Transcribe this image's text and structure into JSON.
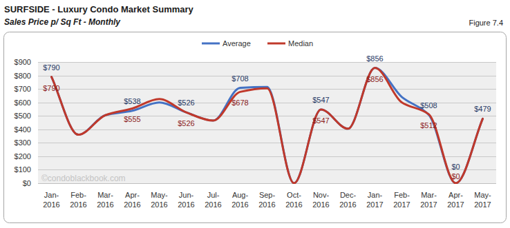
{
  "chart_data": {
    "type": "line",
    "title": "SURFSIDE - Luxury Condo Market Summary",
    "subtitle": "Sales Price  p/ Sq Ft - Monthly",
    "annotations": [
      "Figure 7.4",
      "©condoblackbook.com"
    ],
    "categories": [
      "Jan-2016",
      "Feb-2016",
      "Mar-2016",
      "Apr-2016",
      "May-2016",
      "Jun-2016",
      "Jul-2016",
      "Aug-2016",
      "Sep-2016",
      "Oct-2016",
      "Nov-2016",
      "Dec-2016",
      "Jan-2017",
      "Feb-2017",
      "Mar-2017",
      "Apr-2017",
      "May-2017"
    ],
    "series": [
      {
        "name": "Average",
        "color": "#4472c4",
        "values": [
          790,
          360,
          505,
          538,
          600,
          526,
          465,
          708,
          715,
          0,
          547,
          405,
          856,
          640,
          508,
          0,
          479
        ],
        "value_labels": [
          "$790",
          null,
          null,
          "$538",
          null,
          "$526",
          null,
          "$708",
          null,
          null,
          "$547",
          null,
          "$856",
          null,
          "$508",
          "$0",
          "$479"
        ]
      },
      {
        "name": "Median",
        "color": "#c0392b",
        "values": [
          790,
          360,
          505,
          555,
          625,
          526,
          465,
          678,
          705,
          0,
          547,
          405,
          856,
          600,
          512,
          0,
          479
        ],
        "value_labels": [
          "$790",
          null,
          null,
          "$555",
          null,
          "$526",
          null,
          "$678",
          null,
          null,
          "$547",
          null,
          "$856",
          null,
          "$512",
          "$0",
          null
        ]
      }
    ],
    "ylim": [
      0,
      900
    ],
    "yticks": [
      {
        "value": 0,
        "label": "$0"
      },
      {
        "value": 100,
        "label": "$100"
      },
      {
        "value": 200,
        "label": "$200"
      },
      {
        "value": 300,
        "label": "$300"
      },
      {
        "value": 400,
        "label": "$400"
      },
      {
        "value": 500,
        "label": "$500"
      },
      {
        "value": 600,
        "label": "$600"
      },
      {
        "value": 700,
        "label": "$700"
      },
      {
        "value": 800,
        "label": "$800"
      },
      {
        "value": 900,
        "label": "$900"
      }
    ],
    "grid": true,
    "legend": "top",
    "data_labels": true
  }
}
